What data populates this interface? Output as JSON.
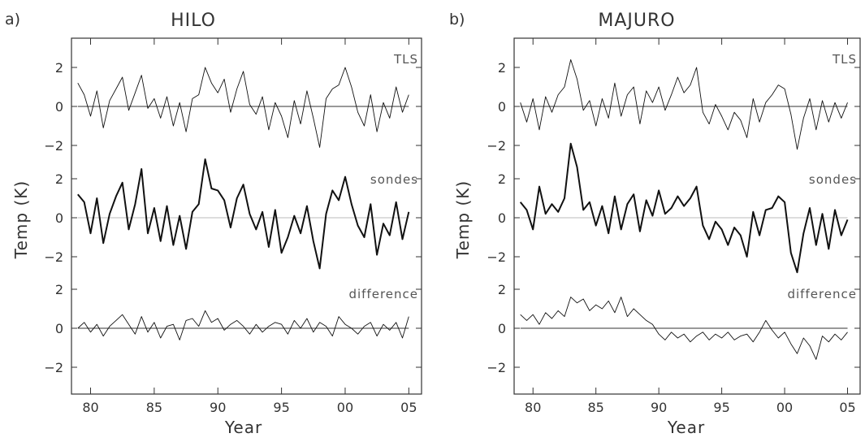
{
  "chart_data": [
    {
      "type": "line",
      "panel_label": "a)",
      "title": "HILO",
      "xlabel": "Year",
      "ylabel": "Temp (K)",
      "x_ticks": [
        "80",
        "85",
        "90",
        "95",
        "00",
        "05"
      ],
      "xlim": [
        1978.5,
        2006
      ],
      "y_ticks_per_subplot": [
        "2",
        "0",
        "-2"
      ],
      "grid": false,
      "series": [
        {
          "name": "TLS",
          "stroke": "thin",
          "ylim": [
            -3,
            3
          ],
          "x": [
            1979.0,
            1979.5,
            1980.0,
            1980.5,
            1981.0,
            1981.5,
            1982.0,
            1982.5,
            1983.0,
            1983.5,
            1984.0,
            1984.5,
            1985.0,
            1985.5,
            1986.0,
            1986.5,
            1987.0,
            1987.5,
            1988.0,
            1988.5,
            1989.0,
            1989.5,
            1990.0,
            1990.5,
            1991.0,
            1991.5,
            1992.0,
            1992.5,
            1993.0,
            1993.5,
            1994.0,
            1994.5,
            1995.0,
            1995.5,
            1996.0,
            1996.5,
            1997.0,
            1997.5,
            1998.0,
            1998.5,
            1999.0,
            1999.5,
            2000.0,
            2000.5,
            2001.0,
            2001.5,
            2002.0,
            2002.5,
            2003.0,
            2003.5,
            2004.0,
            2004.5,
            2005.0
          ],
          "values": [
            1.2,
            0.6,
            -0.5,
            0.8,
            -1.1,
            0.3,
            0.9,
            1.5,
            -0.2,
            0.7,
            1.6,
            -0.1,
            0.4,
            -0.6,
            0.5,
            -1.0,
            0.2,
            -1.3,
            0.4,
            0.6,
            2.0,
            1.2,
            0.7,
            1.4,
            -0.3,
            0.9,
            1.8,
            0.1,
            -0.4,
            0.5,
            -1.2,
            0.2,
            -0.5,
            -1.6,
            0.3,
            -0.9,
            0.8,
            -0.6,
            -2.1,
            0.4,
            0.9,
            1.1,
            2.0,
            1.0,
            -0.3,
            -1.0,
            0.6,
            -1.3,
            0.2,
            -0.6,
            1.0,
            -0.3,
            0.6
          ]
        },
        {
          "name": "sondes",
          "stroke": "thick",
          "ylim": [
            -3,
            3
          ],
          "x": [
            1979.0,
            1979.5,
            1980.0,
            1980.5,
            1981.0,
            1981.5,
            1982.0,
            1982.5,
            1983.0,
            1983.5,
            1984.0,
            1984.5,
            1985.0,
            1985.5,
            1986.0,
            1986.5,
            1987.0,
            1987.5,
            1988.0,
            1988.5,
            1989.0,
            1989.5,
            1990.0,
            1990.5,
            1991.0,
            1991.5,
            1992.0,
            1992.5,
            1993.0,
            1993.5,
            1994.0,
            1994.5,
            1995.0,
            1995.5,
            1996.0,
            1996.5,
            1997.0,
            1997.5,
            1998.0,
            1998.5,
            1999.0,
            1999.5,
            2000.0,
            2000.5,
            2001.0,
            2001.5,
            2002.0,
            2002.5,
            2003.0,
            2003.5,
            2004.0,
            2004.5,
            2005.0
          ],
          "values": [
            1.2,
            0.8,
            -0.8,
            1.0,
            -1.3,
            0.2,
            1.1,
            1.8,
            -0.6,
            0.7,
            2.5,
            -0.8,
            0.5,
            -1.2,
            0.6,
            -1.4,
            0.1,
            -1.6,
            0.3,
            0.7,
            3.0,
            1.5,
            1.4,
            0.9,
            -0.5,
            1.0,
            1.7,
            0.2,
            -0.6,
            0.3,
            -1.5,
            0.4,
            -1.8,
            -1.0,
            0.1,
            -0.8,
            0.6,
            -1.2,
            -2.6,
            0.2,
            1.4,
            0.9,
            2.1,
            0.7,
            -0.4,
            -1.0,
            0.7,
            -1.9,
            -0.3,
            -0.9,
            0.8,
            -1.1,
            0.3
          ]
        },
        {
          "name": "difference",
          "stroke": "thin",
          "ylim": [
            -3,
            3
          ],
          "x": [
            1979.0,
            1979.5,
            1980.0,
            1980.5,
            1981.0,
            1981.5,
            1982.0,
            1982.5,
            1983.0,
            1983.5,
            1984.0,
            1984.5,
            1985.0,
            1985.5,
            1986.0,
            1986.5,
            1987.0,
            1987.5,
            1988.0,
            1988.5,
            1989.0,
            1989.5,
            1990.0,
            1990.5,
            1991.0,
            1991.5,
            1992.0,
            1992.5,
            1993.0,
            1993.5,
            1994.0,
            1994.5,
            1995.0,
            1995.5,
            1996.0,
            1996.5,
            1997.0,
            1997.5,
            1998.0,
            1998.5,
            1999.0,
            1999.5,
            2000.0,
            2000.5,
            2001.0,
            2001.5,
            2002.0,
            2002.5,
            2003.0,
            2003.5,
            2004.0,
            2004.5,
            2005.0
          ],
          "values": [
            0.0,
            0.3,
            -0.2,
            0.2,
            -0.4,
            0.1,
            0.4,
            0.7,
            0.2,
            -0.3,
            0.6,
            -0.2,
            0.3,
            -0.5,
            0.1,
            0.2,
            -0.6,
            0.4,
            0.5,
            0.1,
            0.9,
            0.3,
            0.5,
            -0.1,
            0.2,
            0.4,
            0.1,
            -0.3,
            0.2,
            -0.2,
            0.1,
            0.3,
            0.2,
            -0.3,
            0.4,
            0.0,
            0.5,
            -0.2,
            0.3,
            0.1,
            -0.4,
            0.6,
            0.2,
            0.0,
            -0.3,
            0.1,
            0.3,
            -0.4,
            0.2,
            -0.1,
            0.3,
            -0.5,
            0.6
          ]
        }
      ]
    },
    {
      "type": "line",
      "panel_label": "b)",
      "title": "MAJURO",
      "xlabel": "Year",
      "ylabel": "Temp (K)",
      "x_ticks": [
        "80",
        "85",
        "90",
        "95",
        "00",
        "05"
      ],
      "xlim": [
        1978.5,
        2006
      ],
      "y_ticks_per_subplot": [
        "2",
        "0",
        "-2"
      ],
      "grid": false,
      "series": [
        {
          "name": "TLS",
          "stroke": "thin",
          "ylim": [
            -3,
            3
          ],
          "x": [
            1979.0,
            1979.5,
            1980.0,
            1980.5,
            1981.0,
            1981.5,
            1982.0,
            1982.5,
            1983.0,
            1983.5,
            1984.0,
            1984.5,
            1985.0,
            1985.5,
            1986.0,
            1986.5,
            1987.0,
            1987.5,
            1988.0,
            1988.5,
            1989.0,
            1989.5,
            1990.0,
            1990.5,
            1991.0,
            1991.5,
            1992.0,
            1992.5,
            1993.0,
            1993.5,
            1994.0,
            1994.5,
            1995.0,
            1995.5,
            1996.0,
            1996.5,
            1997.0,
            1997.5,
            1998.0,
            1998.5,
            1999.0,
            1999.5,
            2000.0,
            2000.5,
            2001.0,
            2001.5,
            2002.0,
            2002.5,
            2003.0,
            2003.5,
            2004.0,
            2004.5,
            2005.0
          ],
          "values": [
            0.2,
            -0.8,
            0.4,
            -1.2,
            0.5,
            -0.3,
            0.6,
            1.0,
            2.4,
            1.4,
            -0.2,
            0.3,
            -1.0,
            0.4,
            -0.6,
            1.2,
            -0.5,
            0.6,
            1.0,
            -0.9,
            0.8,
            0.2,
            1.0,
            -0.2,
            0.6,
            1.5,
            0.7,
            1.1,
            2.0,
            -0.3,
            -0.9,
            0.1,
            -0.5,
            -1.2,
            -0.3,
            -0.7,
            -1.6,
            0.4,
            -0.8,
            0.2,
            0.6,
            1.1,
            0.9,
            -0.4,
            -2.2,
            -0.6,
            0.4,
            -1.2,
            0.3,
            -0.8,
            0.2,
            -0.6,
            0.2
          ]
        },
        {
          "name": "sondes",
          "stroke": "thick",
          "ylim": [
            -3,
            3
          ],
          "x": [
            1979.0,
            1979.5,
            1980.0,
            1980.5,
            1981.0,
            1981.5,
            1982.0,
            1982.5,
            1983.0,
            1983.5,
            1984.0,
            1984.5,
            1985.0,
            1985.5,
            1986.0,
            1986.5,
            1987.0,
            1987.5,
            1988.0,
            1988.5,
            1989.0,
            1989.5,
            1990.0,
            1990.5,
            1991.0,
            1991.5,
            1992.0,
            1992.5,
            1993.0,
            1993.5,
            1994.0,
            1994.5,
            1995.0,
            1995.5,
            1996.0,
            1996.5,
            1997.0,
            1997.5,
            1998.0,
            1998.5,
            1999.0,
            1999.5,
            2000.0,
            2000.5,
            2001.0,
            2001.5,
            2002.0,
            2002.5,
            2003.0,
            2003.5,
            2004.0,
            2004.5,
            2005.0
          ],
          "values": [
            0.8,
            0.4,
            -0.6,
            1.6,
            0.2,
            0.7,
            0.3,
            1.0,
            3.8,
            2.6,
            0.4,
            0.8,
            -0.4,
            0.6,
            -0.8,
            1.1,
            -0.6,
            0.7,
            1.2,
            -0.7,
            0.9,
            0.1,
            1.4,
            0.2,
            0.5,
            1.1,
            0.6,
            1.0,
            1.6,
            -0.4,
            -1.1,
            -0.2,
            -0.6,
            -1.4,
            -0.5,
            -0.9,
            -2.0,
            0.3,
            -0.9,
            0.4,
            0.5,
            1.1,
            0.8,
            -1.8,
            -2.8,
            -0.8,
            0.5,
            -1.4,
            0.2,
            -1.6,
            0.4,
            -0.9,
            -0.1
          ]
        },
        {
          "name": "difference",
          "stroke": "thin",
          "ylim": [
            -3,
            3
          ],
          "x": [
            1979.0,
            1979.5,
            1980.0,
            1980.5,
            1981.0,
            1981.5,
            1982.0,
            1982.5,
            1983.0,
            1983.5,
            1984.0,
            1984.5,
            1985.0,
            1985.5,
            1986.0,
            1986.5,
            1987.0,
            1987.5,
            1988.0,
            1988.5,
            1989.0,
            1989.5,
            1990.0,
            1990.5,
            1991.0,
            1991.5,
            1992.0,
            1992.5,
            1993.0,
            1993.5,
            1994.0,
            1994.5,
            1995.0,
            1995.5,
            1996.0,
            1996.5,
            1997.0,
            1997.5,
            1998.0,
            1998.5,
            1999.0,
            1999.5,
            2000.0,
            2000.5,
            2001.0,
            2001.5,
            2002.0,
            2002.5,
            2003.0,
            2003.5,
            2004.0,
            2004.5,
            2005.0
          ],
          "values": [
            0.7,
            0.4,
            0.7,
            0.2,
            0.8,
            0.5,
            0.9,
            0.6,
            1.6,
            1.3,
            1.5,
            0.9,
            1.2,
            1.0,
            1.4,
            0.8,
            1.6,
            0.6,
            1.0,
            0.7,
            0.4,
            0.2,
            -0.3,
            -0.6,
            -0.2,
            -0.5,
            -0.3,
            -0.7,
            -0.4,
            -0.2,
            -0.6,
            -0.3,
            -0.5,
            -0.2,
            -0.6,
            -0.4,
            -0.3,
            -0.7,
            -0.2,
            0.4,
            -0.1,
            -0.5,
            -0.2,
            -0.8,
            -1.3,
            -0.5,
            -0.9,
            -1.6,
            -0.4,
            -0.7,
            -0.3,
            -0.6,
            -0.2
          ]
        }
      ]
    }
  ]
}
